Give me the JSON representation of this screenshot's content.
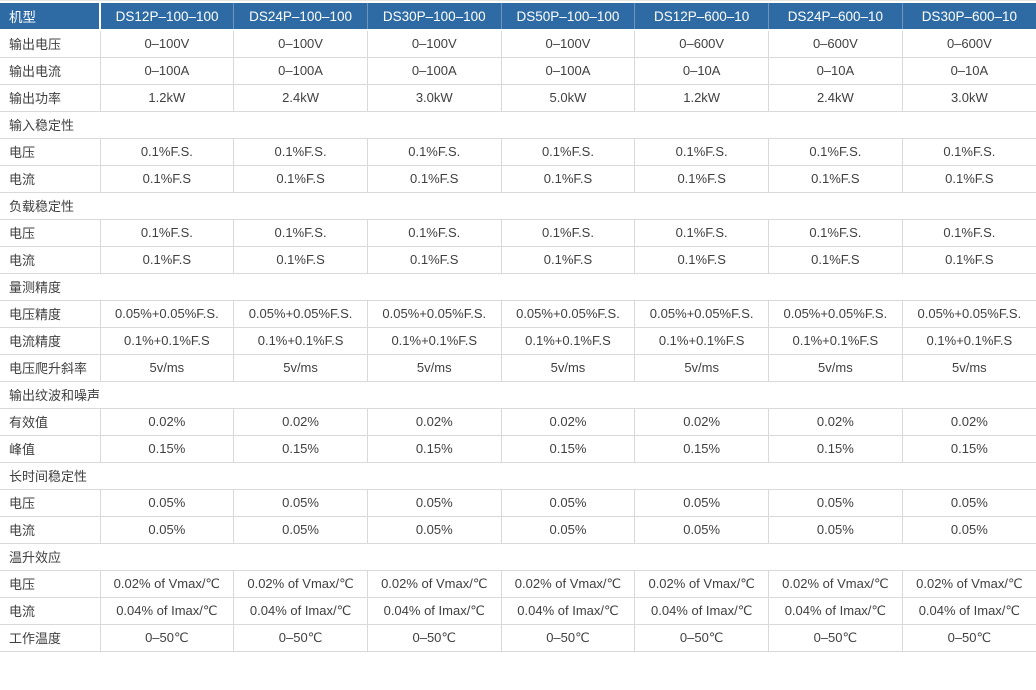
{
  "colors": {
    "header_bg": "#2e6ba4",
    "header_text": "#ffffff",
    "header_divider": "#6e95bd",
    "row_border": "#d9d9d9",
    "body_text": "#404040",
    "body_bg": "#ffffff"
  },
  "table": {
    "corner_label": "机型",
    "models": [
      "DS12P–100–100",
      "DS24P–100–100",
      "DS30P–100–100",
      "DS50P–100–100",
      "DS12P–600–10",
      "DS24P–600–10",
      "DS30P–600–10"
    ],
    "rows": [
      {
        "type": "data",
        "label": "输出电压",
        "values": [
          "0–100V",
          "0–100V",
          "0–100V",
          "0–100V",
          "0–600V",
          "0–600V",
          "0–600V"
        ]
      },
      {
        "type": "data",
        "label": "输出电流",
        "values": [
          "0–100A",
          "0–100A",
          "0–100A",
          "0–100A",
          "0–10A",
          "0–10A",
          "0–10A"
        ]
      },
      {
        "type": "data",
        "label": "输出功率",
        "values": [
          "1.2kW",
          "2.4kW",
          "3.0kW",
          "5.0kW",
          "1.2kW",
          "2.4kW",
          "3.0kW"
        ]
      },
      {
        "type": "section",
        "label": "输入稳定性"
      },
      {
        "type": "data",
        "label": "电压",
        "values": [
          "0.1%F.S.",
          "0.1%F.S.",
          "0.1%F.S.",
          "0.1%F.S.",
          "0.1%F.S.",
          "0.1%F.S.",
          "0.1%F.S."
        ]
      },
      {
        "type": "data",
        "label": "电流",
        "values": [
          "0.1%F.S",
          "0.1%F.S",
          "0.1%F.S",
          "0.1%F.S",
          "0.1%F.S",
          "0.1%F.S",
          "0.1%F.S"
        ]
      },
      {
        "type": "section",
        "label": "负载稳定性"
      },
      {
        "type": "data",
        "label": "电压",
        "values": [
          "0.1%F.S.",
          "0.1%F.S.",
          "0.1%F.S.",
          "0.1%F.S.",
          "0.1%F.S.",
          "0.1%F.S.",
          "0.1%F.S."
        ]
      },
      {
        "type": "data",
        "label": "电流",
        "values": [
          "0.1%F.S",
          "0.1%F.S",
          "0.1%F.S",
          "0.1%F.S",
          "0.1%F.S",
          "0.1%F.S",
          "0.1%F.S"
        ]
      },
      {
        "type": "section",
        "label": "量测精度"
      },
      {
        "type": "data",
        "label": "电压精度",
        "values": [
          "0.05%+0.05%F.S.",
          "0.05%+0.05%F.S.",
          "0.05%+0.05%F.S.",
          "0.05%+0.05%F.S.",
          "0.05%+0.05%F.S.",
          "0.05%+0.05%F.S.",
          "0.05%+0.05%F.S."
        ]
      },
      {
        "type": "data",
        "label": "电流精度",
        "values": [
          "0.1%+0.1%F.S",
          "0.1%+0.1%F.S",
          "0.1%+0.1%F.S",
          "0.1%+0.1%F.S",
          "0.1%+0.1%F.S",
          "0.1%+0.1%F.S",
          "0.1%+0.1%F.S"
        ]
      },
      {
        "type": "data",
        "label": "电压爬升斜率",
        "values": [
          "5v/ms",
          "5v/ms",
          "5v/ms",
          "5v/ms",
          "5v/ms",
          "5v/ms",
          "5v/ms"
        ]
      },
      {
        "type": "section",
        "label": "输出纹波和噪声"
      },
      {
        "type": "data",
        "label": "有效值",
        "values": [
          "0.02%",
          "0.02%",
          "0.02%",
          "0.02%",
          "0.02%",
          "0.02%",
          "0.02%"
        ]
      },
      {
        "type": "data",
        "label": "峰值",
        "values": [
          "0.15%",
          "0.15%",
          "0.15%",
          "0.15%",
          "0.15%",
          "0.15%",
          "0.15%"
        ]
      },
      {
        "type": "section",
        "label": "长时间稳定性"
      },
      {
        "type": "data",
        "label": "电压",
        "values": [
          "0.05%",
          "0.05%",
          "0.05%",
          "0.05%",
          "0.05%",
          "0.05%",
          "0.05%"
        ]
      },
      {
        "type": "data",
        "label": "电流",
        "values": [
          "0.05%",
          "0.05%",
          "0.05%",
          "0.05%",
          "0.05%",
          "0.05%",
          "0.05%"
        ]
      },
      {
        "type": "section",
        "label": "温升效应"
      },
      {
        "type": "data",
        "label": "电压",
        "values": [
          "0.02% of Vmax/℃",
          "0.02% of Vmax/℃",
          "0.02% of Vmax/℃",
          "0.02% of Vmax/℃",
          "0.02% of Vmax/℃",
          "0.02% of Vmax/℃",
          "0.02% of Vmax/℃"
        ]
      },
      {
        "type": "data",
        "label": "电流",
        "values": [
          "0.04% of Imax/℃",
          "0.04% of Imax/℃",
          "0.04% of Imax/℃",
          "0.04% of Imax/℃",
          "0.04% of Imax/℃",
          "0.04% of Imax/℃",
          "0.04% of Imax/℃"
        ]
      },
      {
        "type": "data",
        "label": "工作温度",
        "values": [
          "0–50℃",
          "0–50℃",
          "0–50℃",
          "0–50℃",
          "0–50℃",
          "0–50℃",
          "0–50℃"
        ]
      }
    ]
  }
}
